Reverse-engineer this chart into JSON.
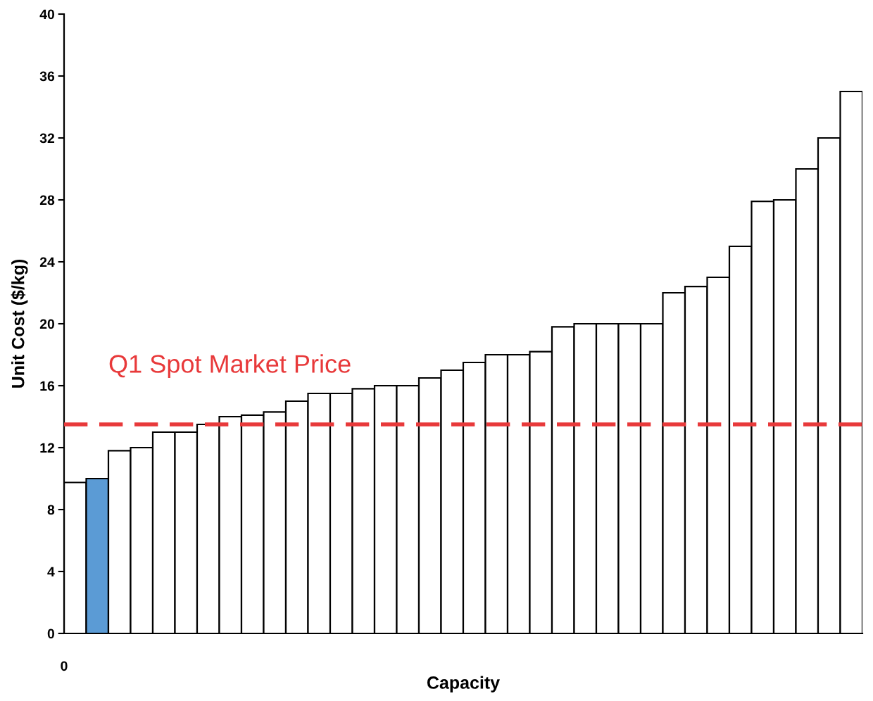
{
  "chart_data": {
    "type": "bar",
    "xlabel": "Capacity",
    "ylabel": "Unit Cost ($/kg)",
    "categories": [
      null,
      null,
      null,
      null,
      null,
      null,
      null,
      null,
      null,
      null,
      null,
      null,
      null,
      null,
      null,
      null,
      null,
      null,
      null,
      null,
      null,
      null,
      null,
      null,
      null,
      null,
      null,
      null,
      null,
      null,
      null,
      null,
      null,
      null,
      null,
      null
    ],
    "values": [
      9.75,
      10.0,
      11.8,
      12.0,
      13.0,
      13.0,
      13.5,
      14.0,
      14.1,
      14.3,
      15.0,
      15.5,
      15.5,
      15.8,
      16.0,
      16.0,
      16.5,
      17.0,
      17.5,
      18.0,
      18.0,
      18.2,
      19.8,
      20.0,
      20.0,
      20.0,
      20.0,
      22.0,
      22.4,
      23.0,
      25.0,
      27.9,
      28.0,
      30.0,
      32.0,
      35.0
    ],
    "colors": [
      "#ffffff",
      "#5b9bd5",
      "#ffffff",
      "#ffffff",
      "#ffffff",
      "#ffffff",
      "#ffffff",
      "#ffffff",
      "#ffffff",
      "#ffffff",
      "#ffffff",
      "#ffffff",
      "#ffffff",
      "#ffffff",
      "#ffffff",
      "#ffffff",
      "#ffffff",
      "#ffffff",
      "#ffffff",
      "#ffffff",
      "#ffffff",
      "#ffffff",
      "#ffffff",
      "#ffffff",
      "#ffffff",
      "#ffffff",
      "#ffffff",
      "#ffffff",
      "#ffffff",
      "#ffffff",
      "#ffffff",
      "#ffffff",
      "#ffffff",
      "#ffffff",
      "#ffffff",
      "#ffffff"
    ],
    "ylim": [
      0,
      40
    ],
    "yticks": [
      0,
      4,
      8,
      12,
      16,
      20,
      24,
      28,
      32,
      36,
      40
    ],
    "ref_lines": [
      {
        "axis": "y",
        "value": 13.5,
        "label": "Q1 Spot Market Price",
        "color": "#e8393a",
        "line_style": "dashed"
      }
    ],
    "annotations": [
      "0"
    ],
    "grid": false
  }
}
